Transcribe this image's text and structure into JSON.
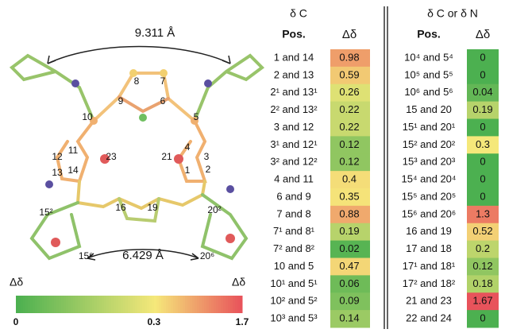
{
  "molecule": {
    "distances": [
      "9.311 Å",
      "6.429 Å"
    ],
    "atom_labels": [
      "8",
      "7",
      "9",
      "6",
      "10",
      "5",
      "12",
      "11",
      "23",
      "21",
      "4",
      "3",
      "13",
      "14",
      "1",
      "2",
      "15²",
      "16",
      "19",
      "20²",
      "15⁶",
      "20⁶"
    ]
  },
  "colorbar": {
    "label_left": "Δδ",
    "label_right": "Δδ",
    "ticks": [
      0,
      0.3,
      1.7
    ]
  },
  "tables": [
    {
      "header": "δ C",
      "columns": [
        "Pos.",
        "Δδ"
      ],
      "rows": [
        [
          "1 and 14",
          0.98
        ],
        [
          "2 and 13",
          0.59
        ],
        [
          "2¹ and 13¹",
          0.26
        ],
        [
          "2² and 13²",
          0.22
        ],
        [
          "3 and 12",
          0.22
        ],
        [
          "3¹ and 12¹",
          0.12
        ],
        [
          "3² and 12²",
          0.12
        ],
        [
          "4 and 11",
          0.4
        ],
        [
          "6 and 9",
          0.35
        ],
        [
          "7 and 8",
          0.88
        ],
        [
          "7¹ and 8¹",
          0.19
        ],
        [
          "7² and 8²",
          0.02
        ],
        [
          "10 and 5",
          0.47
        ],
        [
          "10¹ and 5¹",
          0.06
        ],
        [
          "10² and 5²",
          0.09
        ],
        [
          "10³ and 5³",
          0.14
        ]
      ]
    },
    {
      "header": "δ C or δ N",
      "columns": [
        "Pos.",
        "Δδ"
      ],
      "rows": [
        [
          "10⁴ and 5⁴",
          0
        ],
        [
          "10⁵ and 5⁵",
          0
        ],
        [
          "10⁶ and 5⁶",
          0.04
        ],
        [
          "15 and 20",
          0.19
        ],
        [
          "15¹ and 20¹",
          0
        ],
        [
          "15² and 20²",
          0.3
        ],
        [
          "15³ and 20³",
          0
        ],
        [
          "15⁴ and 20⁴",
          0
        ],
        [
          "15⁵ and 20⁵",
          0
        ],
        [
          "15⁶ and 20⁶",
          1.3
        ],
        [
          "16 and 19",
          0.52
        ],
        [
          "17 and 18",
          0.2
        ],
        [
          "17¹ and 18¹",
          0.12
        ],
        [
          "17² and 18²",
          0.18
        ],
        [
          "21 and 23",
          1.67
        ],
        [
          "22 and 24",
          0
        ]
      ]
    }
  ]
}
